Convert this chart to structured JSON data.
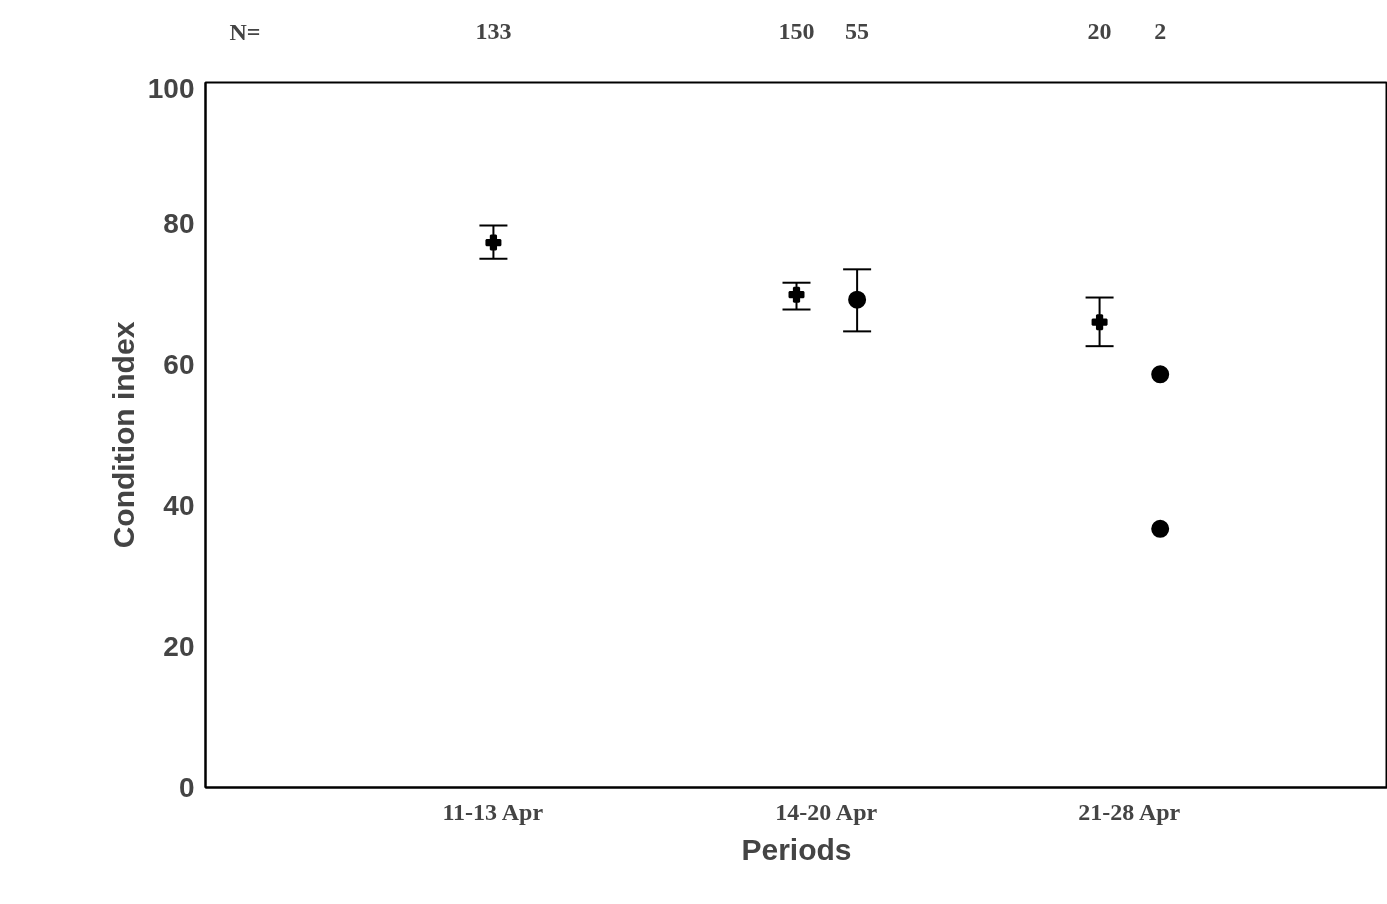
{
  "chart_data": {
    "type": "scatter",
    "xlabel": "Periods",
    "ylabel": "Condition index",
    "categories": [
      null,
      null,
      null,
      null,
      null,
      null,
      null,
      null,
      null,
      "11-13 Apr",
      null,
      null,
      null,
      null,
      null,
      null,
      null,
      null,
      null,
      null,
      "14-20 Apr",
      null,
      null,
      null,
      null,
      null,
      null,
      null,
      null,
      null,
      "21-28 Apr",
      null,
      null,
      null,
      null,
      null,
      null,
      null,
      null
    ],
    "ylim": [
      0,
      100
    ],
    "yticks": [
      0,
      20,
      40,
      60,
      80,
      100
    ],
    "grid": false,
    "series": [
      {
        "color": "#000000",
        "marker": "cross",
        "values": [
          null,
          null,
          null,
          null,
          null,
          null,
          null,
          null,
          null,
          77.3,
          null,
          null,
          null,
          null,
          null,
          null,
          null,
          null,
          null,
          69.9,
          null,
          null,
          null,
          null,
          null,
          null,
          null,
          null,
          null,
          66.0,
          null,
          null,
          null,
          null,
          null,
          null,
          null,
          null,
          null
        ],
        "errors": [
          null,
          null,
          null,
          null,
          null,
          null,
          null,
          null,
          null,
          [
            75.0,
            79.7
          ],
          null,
          null,
          null,
          null,
          null,
          null,
          null,
          null,
          null,
          [
            67.8,
            71.6
          ],
          null,
          null,
          null,
          null,
          null,
          null,
          null,
          null,
          null,
          [
            62.6,
            69.5
          ],
          null,
          null,
          null,
          null,
          null,
          null,
          null,
          null,
          null
        ]
      },
      {
        "color": "#000000",
        "marker": "circle",
        "values": [
          null,
          null,
          null,
          null,
          null,
          null,
          null,
          null,
          null,
          null,
          null,
          null,
          null,
          null,
          null,
          null,
          null,
          null,
          null,
          null,
          null,
          69.2,
          null,
          null,
          null,
          null,
          null,
          null,
          null,
          null,
          null,
          58.6,
          null,
          null,
          null,
          null,
          null,
          null,
          null
        ],
        "errors": [
          null,
          null,
          null,
          null,
          null,
          null,
          null,
          null,
          null,
          null,
          null,
          null,
          null,
          null,
          null,
          null,
          null,
          null,
          null,
          null,
          null,
          [
            64.7,
            73.5
          ],
          null,
          null,
          null,
          null,
          null,
          null,
          null,
          null,
          null,
          null,
          null,
          null,
          null,
          null,
          null,
          null,
          null
        ]
      },
      {
        "color": "#000000",
        "marker": "circle",
        "values": [
          null,
          null,
          null,
          null,
          null,
          null,
          null,
          null,
          null,
          null,
          null,
          null,
          null,
          null,
          null,
          null,
          null,
          null,
          null,
          null,
          null,
          null,
          null,
          null,
          null,
          null,
          null,
          null,
          null,
          null,
          null,
          36.7,
          null,
          null,
          null,
          null,
          null,
          null,
          null
        ]
      }
    ],
    "annotations": [
      "N=",
      "133",
      "150",
      "55",
      "20",
      "2"
    ]
  }
}
